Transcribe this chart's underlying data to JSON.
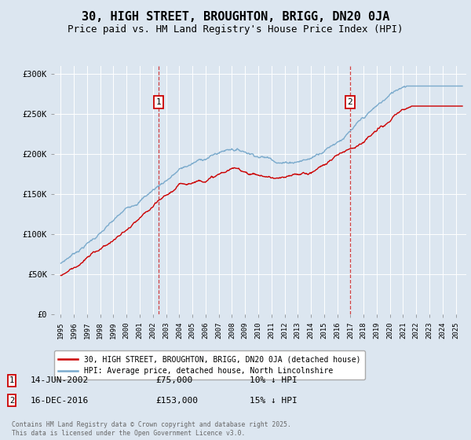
{
  "title": "30, HIGH STREET, BROUGHTON, BRIGG, DN20 0JA",
  "subtitle": "Price paid vs. HM Land Registry's House Price Index (HPI)",
  "ylim": [
    0,
    310000
  ],
  "xlim_start": 1994.5,
  "xlim_end": 2025.8,
  "yticks": [
    0,
    50000,
    100000,
    150000,
    200000,
    250000,
    300000
  ],
  "ytick_labels": [
    "£0",
    "£50K",
    "£100K",
    "£150K",
    "£200K",
    "£250K",
    "£300K"
  ],
  "background_color": "#dce6f0",
  "title_fontsize": 11,
  "subtitle_fontsize": 9,
  "legend_line1": "30, HIGH STREET, BROUGHTON, BRIGG, DN20 0JA (detached house)",
  "legend_line2": "HPI: Average price, detached house, North Lincolnshire",
  "sale1_date": "14-JUN-2002",
  "sale1_price": "£75,000",
  "sale1_pct": "10% ↓ HPI",
  "sale1_year": 2002.45,
  "sale2_date": "16-DEC-2016",
  "sale2_price": "£153,000",
  "sale2_pct": "15% ↓ HPI",
  "sale2_year": 2016.96,
  "line_red_color": "#cc0000",
  "line_blue_color": "#7aaacc",
  "footer": "Contains HM Land Registry data © Crown copyright and database right 2025.\nThis data is licensed under the Open Government Licence v3.0.",
  "xticks": [
    1995,
    1996,
    1997,
    1998,
    1999,
    2000,
    2001,
    2002,
    2003,
    2004,
    2005,
    2006,
    2007,
    2008,
    2009,
    2010,
    2011,
    2012,
    2013,
    2014,
    2015,
    2016,
    2017,
    2018,
    2019,
    2020,
    2021,
    2022,
    2023,
    2024,
    2025
  ]
}
